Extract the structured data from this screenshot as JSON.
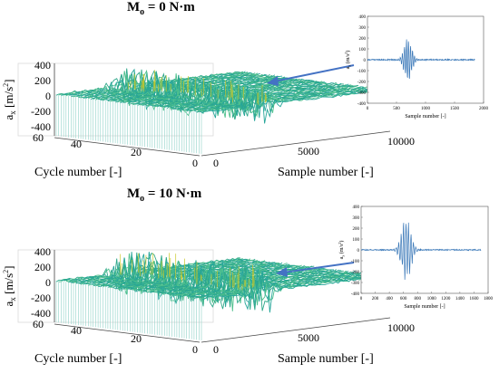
{
  "chart_data": [
    {
      "type": "surface",
      "title_main": "M",
      "title_sub": "o",
      "title_rest": " = 0 N·m",
      "zlabel_main": "a",
      "zlabel_sub": "x",
      "zlabel_unit": "[m/s",
      "zlabel_unit_sup": "2",
      "zlabel_unit_end": "]",
      "xlabel": "Cycle number [-]",
      "ylabel": "Sample number [-]",
      "zticks": [
        "400",
        "200",
        "0",
        "-200",
        "-400"
      ],
      "xticks": [
        "60",
        "40",
        "20",
        "0"
      ],
      "yticks": [
        "0",
        "5000",
        "10000"
      ],
      "zlim": [
        -400,
        400
      ],
      "cycles": 60,
      "inset": {
        "type": "line",
        "ylabel_main": "a",
        "ylabel_sub": "x",
        "ylabel_unit": "(m/s",
        "ylabel_unit_sup": "2",
        "ylabel_unit_end": ")",
        "xlabel": "Sample number [-]",
        "yticks": [
          "400",
          "300",
          "200",
          "100",
          "0",
          "-100",
          "-200",
          "-300",
          "-400"
        ],
        "xticks": [
          "0",
          "500",
          "1000",
          "1500",
          "2000"
        ],
        "xlim": [
          0,
          2000
        ],
        "ylim": [
          -400,
          400
        ],
        "peak_center": 700,
        "peak_amplitude": 200
      }
    },
    {
      "type": "surface",
      "title_main": "M",
      "title_sub": "o",
      "title_rest": " = 10 N·m",
      "zlabel_main": "a",
      "zlabel_sub": "x",
      "zlabel_unit": "[m/s",
      "zlabel_unit_sup": "2",
      "zlabel_unit_end": "]",
      "xlabel": "Cycle number [-]",
      "ylabel": "Sample number [-]",
      "zticks": [
        "400",
        "200",
        "0",
        "-200",
        "-400"
      ],
      "xticks": [
        "60",
        "40",
        "20",
        "0"
      ],
      "yticks": [
        "0",
        "5000",
        "10000"
      ],
      "zlim": [
        -400,
        400
      ],
      "cycles": 60,
      "inset": {
        "type": "line",
        "ylabel_main": "a",
        "ylabel_sub": "x",
        "ylabel_unit": "(m/s",
        "ylabel_unit_sup": "2",
        "ylabel_unit_end": ")",
        "xlabel": "Sample number [-]",
        "yticks": [
          "400",
          "300",
          "200",
          "100",
          "0",
          "-100",
          "-200",
          "-300",
          "-400"
        ],
        "xticks": [
          "0",
          "200",
          "400",
          "600",
          "800",
          "1000",
          "1200",
          "1400",
          "1600",
          "1800"
        ],
        "xlim": [
          0,
          1800
        ],
        "ylim": [
          -400,
          400
        ],
        "peak_center": 640,
        "peak_amplitude": 260
      }
    }
  ]
}
